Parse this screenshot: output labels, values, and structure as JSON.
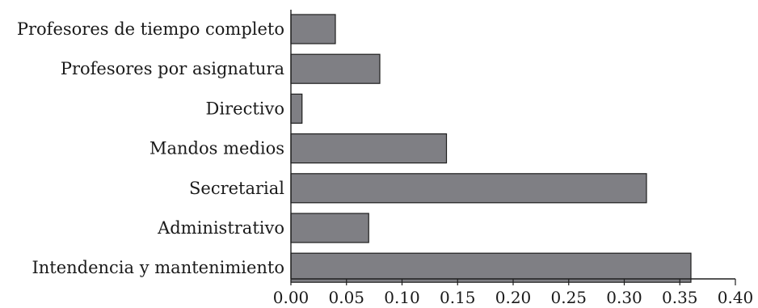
{
  "chart_data": {
    "type": "bar",
    "orientation": "horizontal",
    "title": "",
    "xlabel": "",
    "ylabel": "",
    "categories": [
      "Profesores de tiempo completo",
      "Profesores por asignatura",
      "Directivo",
      "Mandos medios",
      "Secretarial",
      "Administrativo",
      "Intendencia y mantenimiento"
    ],
    "values": [
      0.04,
      0.08,
      0.01,
      0.14,
      0.32,
      0.07,
      0.36
    ],
    "xlim": [
      0,
      0.4
    ],
    "x_ticks": [
      "0.00",
      "0.05",
      "0.10",
      "0.15",
      "0.20",
      "0.25",
      "0.30",
      "0.35",
      "0.40"
    ],
    "grid": false,
    "legend": "none",
    "bar_color": "#7f7f84",
    "edge_color": "#1e1e1e"
  }
}
